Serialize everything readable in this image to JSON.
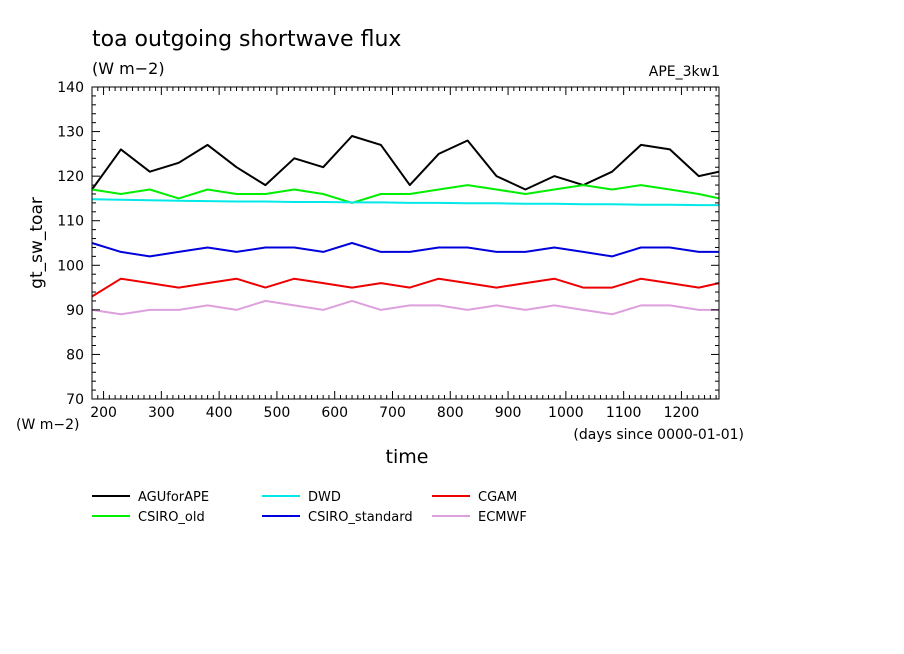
{
  "chart_data": {
    "type": "line",
    "title": "toa outgoing shortwave flux",
    "subtitle": "(W m−2)",
    "tag": "APE_3kw1",
    "ylabel": "gt_sw_toar",
    "yunit": "(W m−2)",
    "xlabel": "time",
    "xunit": "(days since 0000-01-01)",
    "xlim": [
      180,
      1265
    ],
    "ylim": [
      70,
      140
    ],
    "xticks": [
      200,
      300,
      400,
      500,
      600,
      700,
      800,
      900,
      1000,
      1100,
      1200
    ],
    "yticks": [
      70,
      80,
      90,
      100,
      110,
      120,
      130,
      140
    ],
    "grid": false,
    "legend_position": "bottom-left",
    "x": [
      180,
      230,
      280,
      330,
      380,
      430,
      480,
      530,
      580,
      630,
      680,
      730,
      780,
      830,
      880,
      930,
      980,
      1030,
      1080,
      1130,
      1180,
      1230,
      1265
    ],
    "series": [
      {
        "name": "AGUforAPE",
        "color": "#000000",
        "values": [
          117,
          126,
          121,
          123,
          127,
          122,
          118,
          124,
          122,
          129,
          127,
          118,
          125,
          128,
          120,
          117,
          120,
          118,
          121,
          127,
          126,
          120,
          121
        ]
      },
      {
        "name": "CSIRO_old",
        "color": "#00ee00",
        "values": [
          117,
          116,
          117,
          115,
          117,
          116,
          116,
          117,
          116,
          114,
          116,
          116,
          117,
          118,
          117,
          116,
          117,
          118,
          117,
          118,
          117,
          116,
          115
        ]
      },
      {
        "name": "DWD",
        "color": "#00e8e8",
        "values": [
          114.8,
          114.7,
          114.6,
          114.5,
          114.4,
          114.3,
          114.3,
          114.2,
          114.2,
          114.1,
          114.1,
          114.0,
          114.0,
          113.9,
          113.9,
          113.8,
          113.8,
          113.7,
          113.7,
          113.6,
          113.6,
          113.5,
          113.5
        ]
      },
      {
        "name": "CSIRO_standard",
        "color": "#0000dd",
        "values": [
          105,
          103,
          102,
          103,
          104,
          103,
          104,
          104,
          103,
          105,
          103,
          103,
          104,
          104,
          103,
          103,
          104,
          103,
          102,
          104,
          104,
          103,
          103
        ]
      },
      {
        "name": "CGAM",
        "color": "#ee0000",
        "values": [
          93,
          97,
          96,
          95,
          96,
          97,
          95,
          97,
          96,
          95,
          96,
          95,
          97,
          96,
          95,
          96,
          97,
          95,
          95,
          97,
          96,
          95,
          96
        ]
      },
      {
        "name": "ECMWF",
        "color": "#dda0dd",
        "values": [
          90,
          89,
          90,
          90,
          91,
          90,
          92,
          91,
          90,
          92,
          90,
          91,
          91,
          90,
          91,
          90,
          91,
          90,
          89,
          91,
          91,
          90,
          90
        ]
      }
    ]
  }
}
